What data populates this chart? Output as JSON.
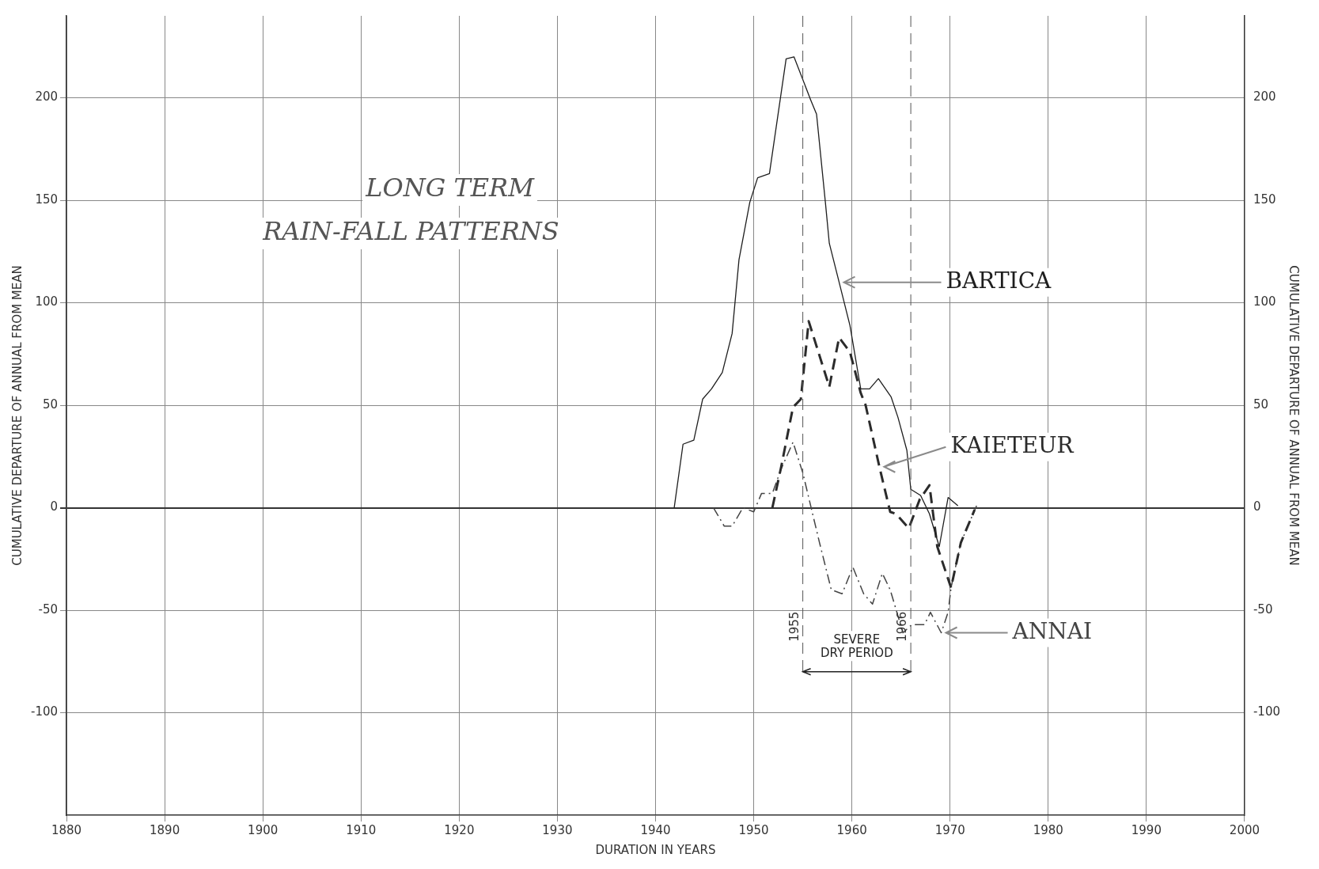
{
  "chart_data": {
    "type": "line",
    "xlabel": "DURATION IN YEARS",
    "ylabel": "CUMULATIVE DEPARTURE OF ANNUAL FROM MEAN",
    "y2label": "CUMULATIVE DEPARTURE OF ANNUAL FROM MEAN",
    "annotations": [
      "LONG TERM",
      "RAIN-FALL PATTERNS",
      "SEVERE DRY PERIOD"
    ],
    "xlim": [
      1880,
      2000
    ],
    "xticks": [
      1880,
      1890,
      1900,
      1910,
      1920,
      1930,
      1940,
      1950,
      1960,
      1970,
      1980,
      1990,
      2000
    ],
    "ylim": [
      -150,
      240
    ],
    "yticks": [
      -100,
      -50,
      0,
      50,
      100,
      150,
      200
    ],
    "y2lim": [
      -150,
      240
    ],
    "y2ticks": [
      -100,
      -50,
      0,
      50,
      100,
      150,
      200
    ],
    "grid": true,
    "legend": false,
    "marker": "none",
    "ref_lines": [
      {
        "axis": "x",
        "value": 1955,
        "label": "1955"
      },
      {
        "axis": "x",
        "value": 1966,
        "label": "1966"
      }
    ],
    "series": [
      {
        "name": "BARTICA",
        "color": "#1e1e1e",
        "line_style": "solid",
        "x": [
          1941.9,
          1942.8,
          1943.9,
          1944.8,
          1945.7,
          1946.8,
          1947.8,
          1948.5,
          1949.6,
          1950.4,
          1951.6,
          1953.3,
          1954.1,
          1955.8,
          1956.4,
          1957.3,
          1957.7,
          1958.7,
          1959.8,
          1960.9,
          1961.8,
          1962.7,
          1964.0,
          1964.7,
          1965.6,
          1966.0,
          1967.0,
          1967.9,
          1968.9,
          1969.8,
          1970.8
        ],
        "values": [
          0,
          31,
          33,
          53,
          58,
          66,
          85,
          121,
          149,
          161,
          163,
          219,
          220,
          199,
          192,
          149,
          129,
          110,
          89,
          58,
          58,
          63,
          54,
          44,
          28,
          9,
          6,
          -3,
          -19,
          5,
          1
        ]
      },
      {
        "name": "KAIETEUR",
        "color": "#2b2b2b",
        "line_style": "dashed",
        "x": [
          1951.9,
          1952.8,
          1954.0,
          1954.8,
          1955.6,
          1957.7,
          1958.7,
          1959.8,
          1960.9,
          1961.4,
          1962.8,
          1963.9,
          1964.5,
          1965.8,
          1966.9,
          1967.9,
          1968.7,
          1970.1,
          1971.1,
          1972.5
        ],
        "values": [
          0,
          20,
          49,
          53,
          91,
          59,
          83,
          76,
          56,
          50,
          20,
          -2,
          -3,
          -10,
          4,
          11,
          -19,
          -39,
          -17,
          -1
        ]
      },
      {
        "name": "ANNAI",
        "color": "#444444",
        "line_style": "dashdot",
        "x": [
          1945.9,
          1947.0,
          1947.8,
          1948.9,
          1950.0,
          1950.8,
          1951.9,
          1952.8,
          1954.0,
          1955.0,
          1956.7,
          1957.9,
          1959.0,
          1960.1,
          1961.2,
          1962.1,
          1963.1,
          1963.9,
          1965.2,
          1966.1,
          1967.4,
          1968.0,
          1969.1,
          1969.8,
          1970.1,
          1971.1,
          1972.7
        ],
        "values": [
          0,
          -9,
          -9,
          0,
          -2,
          7,
          7,
          19,
          32,
          17,
          -17,
          -40,
          -42,
          -29,
          -42,
          -47,
          -32,
          -40,
          -61,
          -57,
          -57,
          -51,
          -61,
          -51,
          -39,
          -17,
          1
        ]
      }
    ]
  }
}
